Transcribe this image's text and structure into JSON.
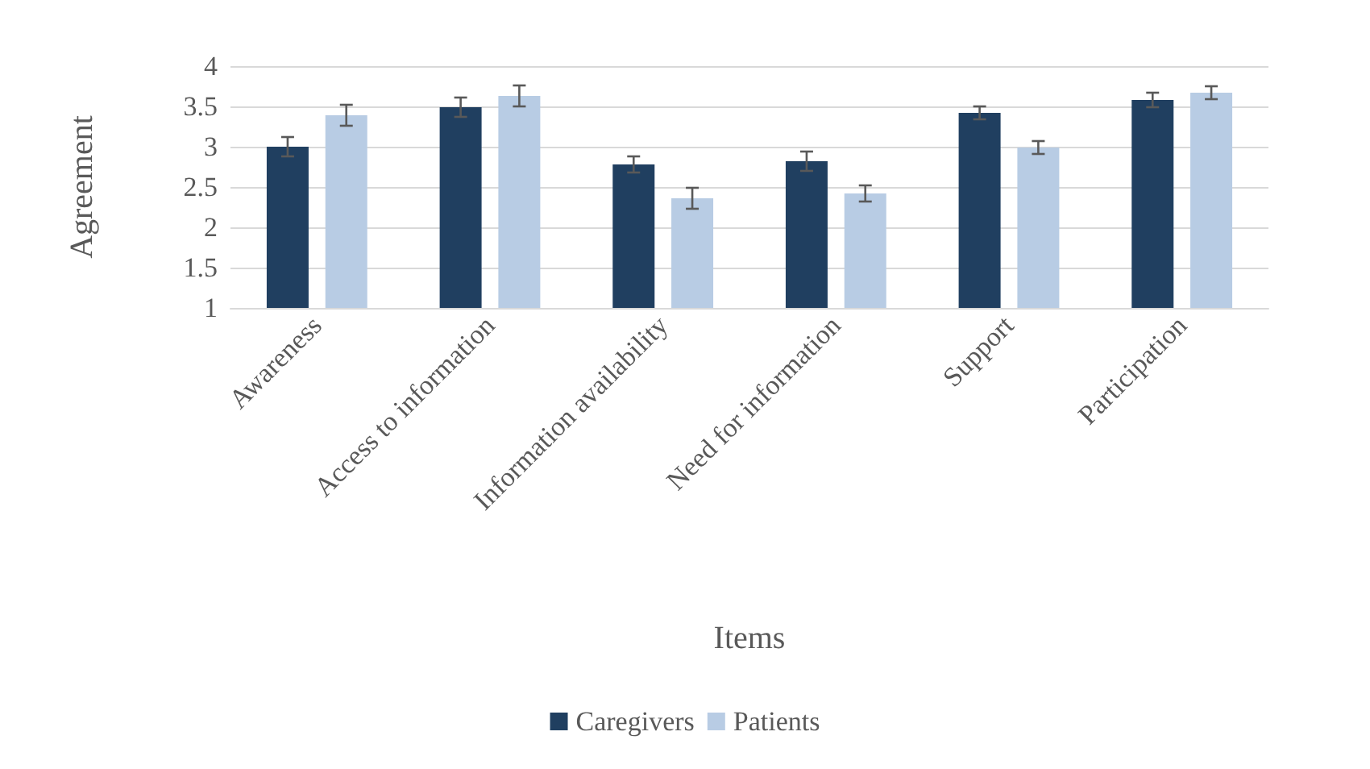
{
  "chart_data": {
    "type": "bar",
    "xlabel": "Items",
    "ylabel": "Agreement",
    "categories": [
      "Awareness",
      "Access to information",
      "Information availability",
      "Need for information",
      "Support",
      "Participation"
    ],
    "series": [
      {
        "name": "Caregivers",
        "color": "#203f60",
        "values": [
          3.0,
          3.49,
          2.78,
          2.82,
          3.42,
          3.58
        ],
        "errors": [
          0.12,
          0.12,
          0.1,
          0.12,
          0.08,
          0.09
        ]
      },
      {
        "name": "Patients",
        "color": "#b8cce4",
        "values": [
          3.39,
          3.63,
          2.36,
          2.42,
          2.99,
          3.67
        ],
        "errors": [
          0.13,
          0.13,
          0.13,
          0.1,
          0.08,
          0.08
        ]
      }
    ],
    "ylim": [
      1,
      4
    ],
    "yticks": [
      1,
      1.5,
      2,
      2.5,
      3,
      3.5,
      4
    ],
    "grid": "y",
    "legend": "bottom"
  }
}
